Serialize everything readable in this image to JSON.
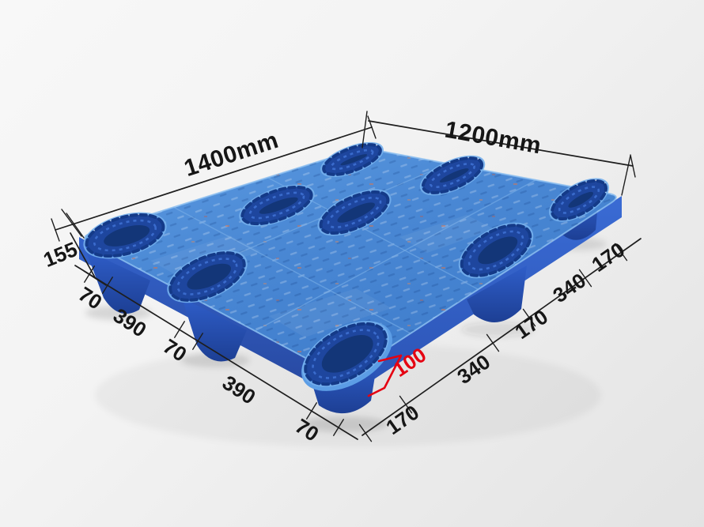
{
  "annotations": {
    "length_label": "1400mm",
    "width_label": "1200mm",
    "height_label": "155",
    "left_edge_segments": [
      "70",
      "390",
      "70",
      "390",
      "70"
    ],
    "right_edge_segments": [
      "170",
      "340",
      "170",
      "340",
      "170"
    ],
    "leg_width_label": "100"
  },
  "colors": {
    "deck_top": "#4a87d2",
    "deck_edge_highlight": "#8abdf0",
    "side_wall": "#2f5ec7",
    "leg": "#24489f",
    "recess": "#1e469e",
    "recess_core": "#123473",
    "dimension_line": "#1e1e1e",
    "highlight_red": "#e50011",
    "background": "#f0f0f0"
  }
}
